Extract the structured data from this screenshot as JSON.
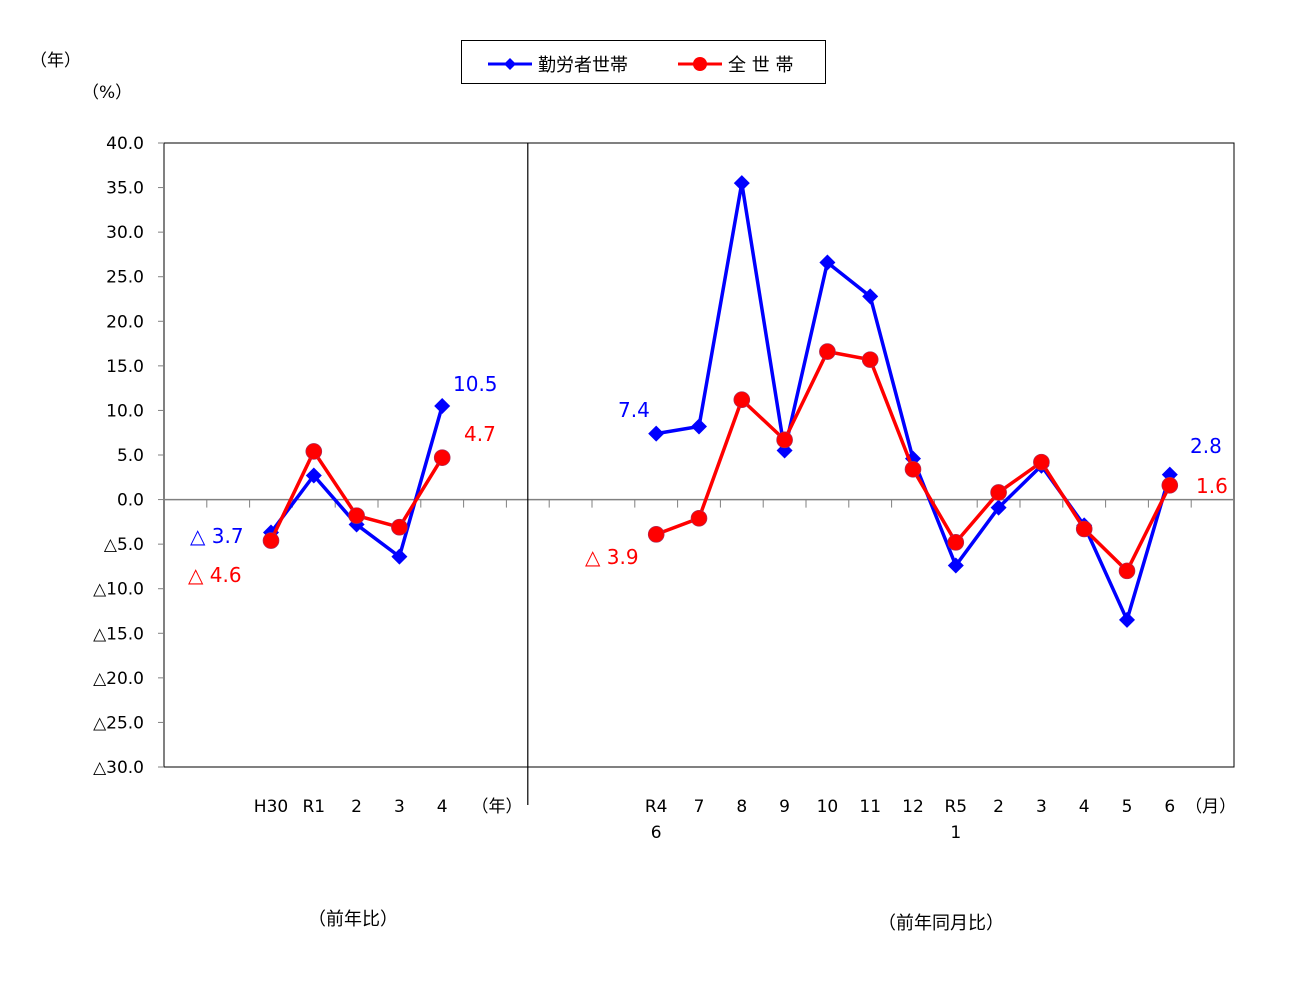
{
  "units": {
    "year_unit_top": "（年）",
    "percent_unit": "（%）"
  },
  "legend": [
    {
      "label": "勤労者世帯",
      "color": "#0000FF",
      "marker": "diamond"
    },
    {
      "label": "全 世 帯",
      "color": "#FF0000",
      "marker": "circle"
    }
  ],
  "captions": {
    "left": "（前年比）",
    "right": "（前年同月比）"
  },
  "axis_suffix": {
    "left": "（年）",
    "right": "（月）"
  },
  "chart_data": {
    "type": "line",
    "title": "",
    "ylabel": "（%）",
    "ylim": [
      -30,
      40
    ],
    "yticks": [
      40,
      35,
      30,
      25,
      20,
      15,
      10,
      5,
      0,
      -5,
      -10,
      -15,
      -20,
      -25,
      -30
    ],
    "ytick_labels": [
      "40.0",
      "35.0",
      "30.0",
      "25.0",
      "20.0",
      "15.0",
      "10.0",
      "5.0",
      "0.0",
      "△5.0",
      "△10.0",
      "△15.0",
      "△20.0",
      "△25.0",
      "△30.0"
    ],
    "legend_position": "top-center",
    "grid": false,
    "panels": [
      {
        "name": "前年比",
        "xunit": "（年）",
        "categories": [
          "H30",
          "R1",
          "2",
          "3",
          "4"
        ],
        "series": [
          {
            "name": "勤労者世帯",
            "color": "#0000FF",
            "values": [
              -3.7,
              2.7,
              -2.8,
              -6.4,
              10.5
            ]
          },
          {
            "name": "全 世 帯",
            "color": "#FF0000",
            "values": [
              -4.6,
              5.4,
              -1.8,
              -3.1,
              4.7
            ]
          }
        ],
        "annotations": [
          {
            "text": "△ 3.7",
            "color": "#0000FF"
          },
          {
            "text": "△ 4.6",
            "color": "#FF0000"
          },
          {
            "text": "10.5",
            "color": "#0000FF"
          },
          {
            "text": "4.7",
            "color": "#FF0000"
          }
        ]
      },
      {
        "name": "前年同月比",
        "xunit": "（月）",
        "categories": [
          "R4 6",
          "7",
          "8",
          "9",
          "10",
          "11",
          "12",
          "R5 1",
          "2",
          "3",
          "4",
          "5",
          "6"
        ],
        "series": [
          {
            "name": "勤労者世帯",
            "color": "#0000FF",
            "values": [
              7.4,
              8.2,
              35.5,
              5.5,
              26.6,
              22.8,
              4.6,
              -7.4,
              -0.9,
              3.8,
              -2.9,
              -13.5,
              2.8
            ]
          },
          {
            "name": "全 世 帯",
            "color": "#FF0000",
            "values": [
              -3.9,
              -2.1,
              11.2,
              6.7,
              16.6,
              15.7,
              3.4,
              -4.8,
              0.8,
              4.2,
              -3.3,
              -8.0,
              1.6
            ]
          }
        ],
        "annotations": [
          {
            "text": "7.4",
            "color": "#0000FF"
          },
          {
            "text": "△ 3.9",
            "color": "#FF0000"
          },
          {
            "text": "2.8",
            "color": "#0000FF"
          },
          {
            "text": "1.6",
            "color": "#FF0000"
          }
        ]
      }
    ]
  }
}
